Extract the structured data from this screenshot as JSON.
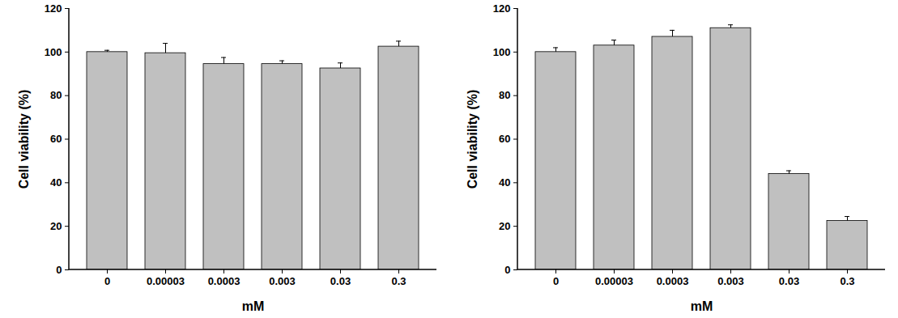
{
  "chart_data": [
    {
      "type": "bar",
      "categories": [
        "0",
        "0.00003",
        "0.0003",
        "0.003",
        "0.03",
        "0.3"
      ],
      "values": [
        100,
        99.5,
        94.5,
        94.5,
        92.5,
        102.5
      ],
      "errors": [
        0.8,
        4.5,
        3,
        1.5,
        2.5,
        2.5
      ],
      "x_label": "mM",
      "y_label": "Cell viability (%)",
      "color": "#c0c0c0",
      "ylim": [
        0,
        120
      ],
      "yticks": [
        0,
        20,
        40,
        60,
        80,
        100,
        120
      ],
      "grid": false
    },
    {
      "type": "bar",
      "categories": [
        "0",
        "0.00003",
        "0.0003",
        "0.003",
        "0.03",
        "0.3"
      ],
      "values": [
        100,
        103,
        107,
        111,
        44,
        22.5
      ],
      "errors": [
        2,
        2.5,
        3,
        1.5,
        1.5,
        2
      ],
      "x_label": "mM",
      "y_label": "Cell viability (%)",
      "color": "#c0c0c0",
      "ylim": [
        0,
        120
      ],
      "yticks": [
        0,
        20,
        40,
        60,
        80,
        100,
        120
      ],
      "grid": false
    }
  ]
}
